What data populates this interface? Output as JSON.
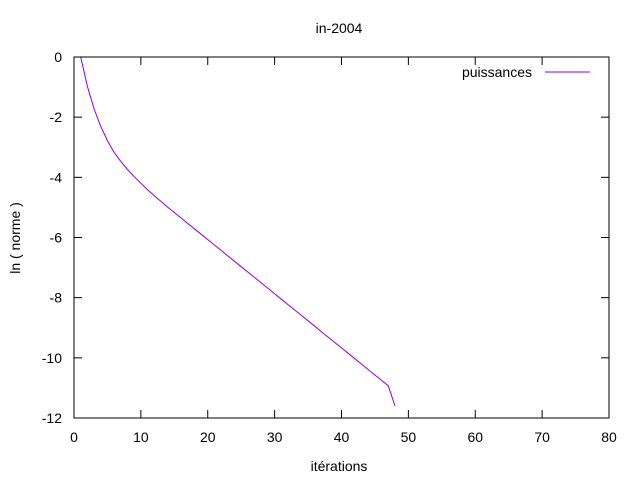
{
  "chart_data": {
    "type": "line",
    "title": "in-2004",
    "xlabel": "itérations",
    "ylabel": "ln ( norme )",
    "xlim": [
      0,
      80
    ],
    "ylim": [
      -12,
      0
    ],
    "xticks": [
      "0",
      "10",
      "20",
      "30",
      "40",
      "50",
      "60",
      "70",
      "80"
    ],
    "yticks": [
      "0",
      "-2",
      "-4",
      "-6",
      "-8",
      "-10",
      "-12"
    ],
    "grid": false,
    "legend_position": "top-right",
    "series": [
      {
        "name": "puissances",
        "color": "#9400d3",
        "x": [
          1,
          2,
          3,
          4,
          5,
          6,
          7,
          8,
          9,
          10,
          11,
          12,
          13,
          14,
          15,
          16,
          17,
          18,
          19,
          20,
          21,
          22,
          23,
          24,
          25,
          26,
          27,
          28,
          29,
          30,
          31,
          32,
          33,
          34,
          35,
          36,
          37,
          38,
          39,
          40,
          41,
          42,
          43,
          44,
          45,
          46,
          47,
          48
        ],
        "y": [
          0.0,
          -0.98,
          -1.73,
          -2.31,
          -2.78,
          -3.17,
          -3.47,
          -3.74,
          -3.98,
          -4.2,
          -4.41,
          -4.61,
          -4.8,
          -4.99,
          -5.17,
          -5.35,
          -5.53,
          -5.71,
          -5.89,
          -6.07,
          -6.25,
          -6.43,
          -6.61,
          -6.79,
          -6.97,
          -7.15,
          -7.33,
          -7.51,
          -7.69,
          -7.87,
          -8.05,
          -8.23,
          -8.41,
          -8.59,
          -8.77,
          -8.95,
          -9.13,
          -9.31,
          -9.49,
          -9.67,
          -9.85,
          -10.03,
          -10.21,
          -10.39,
          -10.57,
          -10.75,
          -10.93,
          -11.6
        ]
      }
    ]
  }
}
